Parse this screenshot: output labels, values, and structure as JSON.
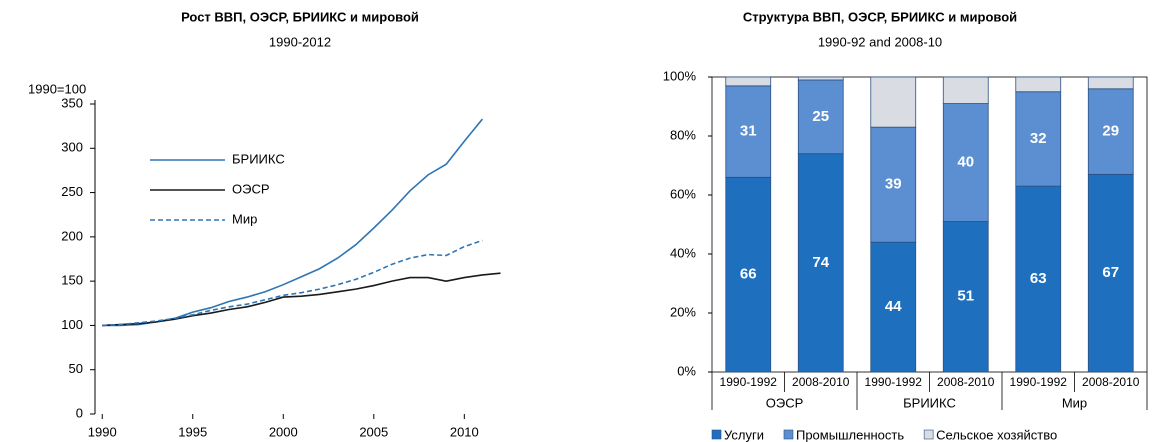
{
  "chart_data": [
    {
      "type": "line",
      "title": "Рост ВВП, ОЭСР, БРИИКС и мировой",
      "subtitle": "1990-2012",
      "y_axis_label": "1990=100",
      "x": [
        1990,
        1991,
        1992,
        1993,
        1994,
        1995,
        1996,
        1997,
        1998,
        1999,
        2000,
        2001,
        2002,
        2003,
        2004,
        2005,
        2006,
        2007,
        2008,
        2009,
        2010,
        2011,
        2012
      ],
      "xlim": [
        1989.6,
        2012.8
      ],
      "xticks": [
        1990,
        1995,
        2000,
        2005,
        2010
      ],
      "ylim": [
        0,
        350
      ],
      "yticks": [
        0,
        50,
        100,
        150,
        200,
        250,
        300,
        350
      ],
      "series": [
        {
          "name": "БРИИКС",
          "color": "#2e75b6",
          "dash": false,
          "values": [
            100,
            100,
            101,
            104,
            108,
            115,
            120,
            127,
            132,
            138,
            146,
            155,
            164,
            176,
            191,
            210,
            230,
            252,
            270,
            282,
            308,
            333,
            null
          ]
        },
        {
          "name": "ОЭСР",
          "color": "#1a1a1a",
          "dash": false,
          "values": [
            100,
            101,
            102,
            104,
            107,
            111,
            114,
            118,
            121,
            126,
            132,
            133,
            135,
            138,
            141,
            145,
            150,
            154,
            154,
            150,
            154,
            157,
            159
          ]
        },
        {
          "name": "Мир",
          "color": "#2e75b6",
          "dash": true,
          "values": [
            100,
            101,
            103,
            105,
            108,
            112,
            117,
            121,
            124,
            129,
            134,
            137,
            141,
            146,
            152,
            160,
            169,
            176,
            180,
            179,
            189,
            196,
            null
          ]
        }
      ]
    },
    {
      "type": "stacked_bar",
      "title": "Структура ВВП, ОЭСР, БРИИКС и мировой",
      "subtitle": "1990-92 and 2008-10",
      "categories": [
        "1990-1992",
        "2008-2010",
        "1990-1992",
        "2008-2010",
        "1990-1992",
        "2008-2010"
      ],
      "groups": [
        "ОЭСР",
        "БРИИКС",
        "Мир"
      ],
      "ylim": [
        0,
        100
      ],
      "yticks": [
        {
          "value": 0,
          "label": "0%"
        },
        {
          "value": 20,
          "label": "20%"
        },
        {
          "value": 40,
          "label": "40%"
        },
        {
          "value": 60,
          "label": "60%"
        },
        {
          "value": 80,
          "label": "80%"
        },
        {
          "value": 100,
          "label": "100%"
        }
      ],
      "series": [
        {
          "name": "Услуги",
          "color": "#1f6fbf",
          "show_labels": true,
          "values": [
            66,
            74,
            44,
            51,
            63,
            67
          ]
        },
        {
          "name": "Промышленность",
          "color": "#5b8fd2",
          "show_labels": true,
          "values": [
            31,
            25,
            39,
            40,
            32,
            29
          ]
        },
        {
          "name": "Сельское хозяйство",
          "color": "#d9dde3",
          "show_labels": false,
          "values": [
            3,
            1,
            17,
            9,
            5,
            4
          ]
        }
      ]
    }
  ]
}
